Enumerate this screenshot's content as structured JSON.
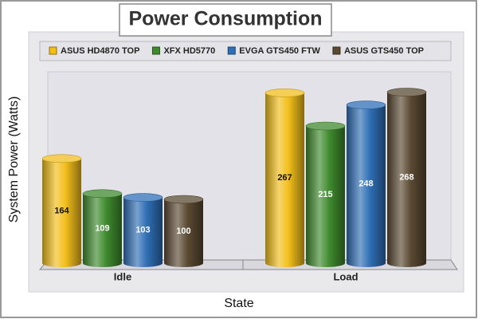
{
  "chart_data": {
    "type": "bar",
    "title": "Power Consumption",
    "x_label": "State",
    "y_label": "System Power (Watts)",
    "categories": [
      "Idle",
      "Load"
    ],
    "series": [
      {
        "name": "ASUS HD4870 TOP",
        "color": "#f2be1c",
        "values": [
          164,
          267
        ]
      },
      {
        "name": "XFX HD5770",
        "color": "#3f8a2e",
        "values": [
          109,
          215
        ]
      },
      {
        "name": "EVGA GTS450 FTW",
        "color": "#2f6fb5",
        "values": [
          103,
          248
        ]
      },
      {
        "name": "ASUS GTS450 TOP",
        "color": "#5a4a32",
        "values": [
          100,
          268
        ]
      }
    ],
    "ylim": [
      0,
      300
    ],
    "legend": "top"
  }
}
